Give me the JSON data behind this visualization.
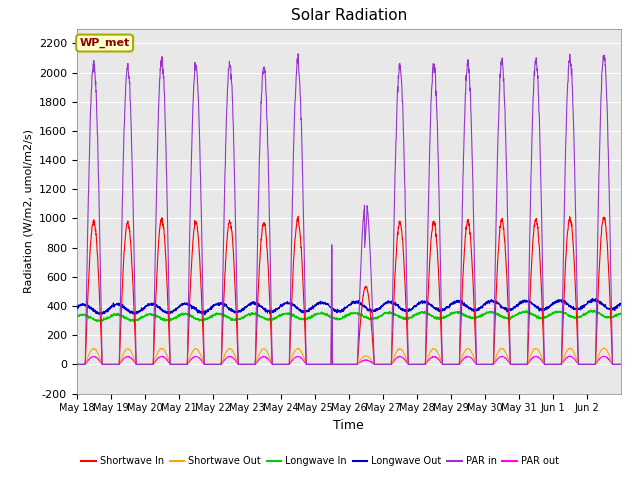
{
  "title": "Solar Radiation",
  "ylabel": "Radiation (W/m2, umol/m2/s)",
  "xlabel": "Time",
  "ylim": [
    -200,
    2300
  ],
  "yticks": [
    -200,
    0,
    200,
    400,
    600,
    800,
    1000,
    1200,
    1400,
    1600,
    1800,
    2000,
    2200
  ],
  "annotation_text": "WP_met",
  "annotation_color": "#8B0000",
  "annotation_bg": "#FFFFCC",
  "annotation_border": "#AAAA00",
  "fig_bg_color": "#FFFFFF",
  "plot_bg": "#E8E8E8",
  "n_days": 16,
  "colors": {
    "shortwave_in": "#FF0000",
    "shortwave_out": "#FFA500",
    "longwave_in": "#00CC00",
    "longwave_out": "#0000CC",
    "par_in": "#9933CC",
    "par_out": "#FF00FF"
  },
  "legend_labels": [
    "Shortwave In",
    "Shortwave Out",
    "Longwave In",
    "Longwave Out",
    "PAR in",
    "PAR out"
  ],
  "legend_colors": [
    "#FF0000",
    "#FFA500",
    "#00CC00",
    "#0000CC",
    "#9933CC",
    "#FF00FF"
  ],
  "day_labels": [
    "May 18",
    "May 19",
    "May 20",
    "May 21",
    "May 22",
    "May 23",
    "May 24",
    "May 25",
    "May 26",
    "May 27",
    "May 28",
    "May 29",
    "May 30",
    "May 31",
    "Jun 1",
    "Jun 2"
  ]
}
